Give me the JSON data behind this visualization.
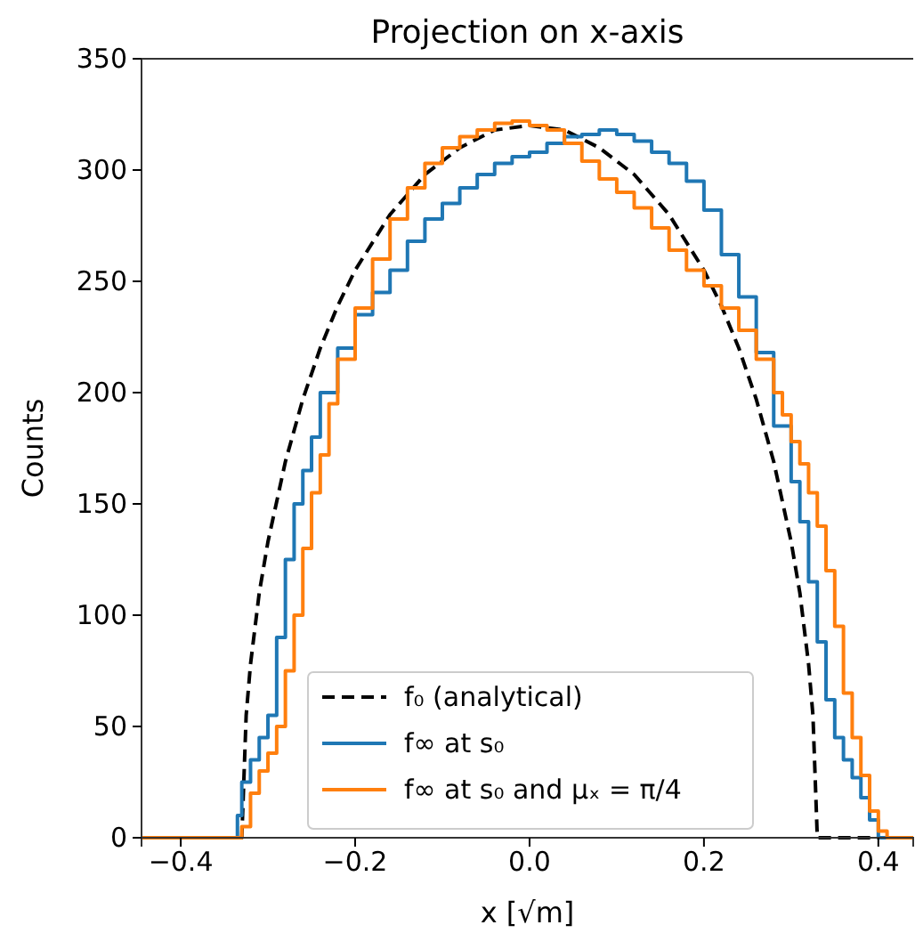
{
  "chart_data": {
    "type": "step",
    "title": "Projection on x-axis",
    "xlabel": "x [√m]",
    "ylabel": "Counts",
    "xlim": [
      -0.445,
      0.44
    ],
    "ylim": [
      0,
      350
    ],
    "xticks": [
      {
        "value": -0.4,
        "label": "−0.4"
      },
      {
        "value": -0.2,
        "label": "−0.2"
      },
      {
        "value": 0,
        "label": "0.0"
      },
      {
        "value": 0.2,
        "label": "0.2"
      },
      {
        "value": 0.4,
        "label": "0.4"
      }
    ],
    "yticks": [
      0,
      50,
      100,
      150,
      200,
      250,
      300,
      350
    ],
    "grid": false,
    "legend": "bottom",
    "marker": "none",
    "series": [
      {
        "name": "f₀ (analytical)",
        "type": "line",
        "line_style": "dashed",
        "color": "#000000",
        "x": [
          -0.445,
          -0.33,
          -0.325,
          -0.32,
          -0.31,
          -0.3,
          -0.28,
          -0.26,
          -0.24,
          -0.22,
          -0.2,
          -0.16,
          -0.12,
          -0.08,
          -0.04,
          0,
          0.04,
          0.08,
          0.12,
          0.16,
          0.2,
          0.22,
          0.24,
          0.26,
          0.28,
          0.3,
          0.31,
          0.32,
          0.325,
          0.33,
          0.44
        ],
        "values": [
          0,
          0,
          55,
          78,
          110,
          133,
          169,
          197,
          220,
          239,
          255,
          280,
          298,
          310,
          318,
          320,
          318,
          310,
          298,
          280,
          255,
          239,
          220,
          197,
          169,
          133,
          110,
          78,
          55,
          0,
          0
        ]
      },
      {
        "name": "f∞ at s₀",
        "color": "#1f77b4",
        "x": [
          -0.445,
          -0.335,
          -0.33,
          -0.32,
          -0.31,
          -0.3,
          -0.29,
          -0.28,
          -0.27,
          -0.26,
          -0.25,
          -0.24,
          -0.22,
          -0.2,
          -0.18,
          -0.16,
          -0.14,
          -0.12,
          -0.1,
          -0.08,
          -0.06,
          -0.04,
          -0.02,
          0,
          0.02,
          0.04,
          0.06,
          0.08,
          0.1,
          0.12,
          0.14,
          0.16,
          0.18,
          0.2,
          0.22,
          0.24,
          0.26,
          0.28,
          0.3,
          0.31,
          0.32,
          0.33,
          0.34,
          0.35,
          0.36,
          0.37,
          0.38,
          0.39,
          0.4,
          0.44
        ],
        "values": [
          0,
          10,
          25,
          35,
          45,
          55,
          90,
          125,
          150,
          165,
          180,
          200,
          220,
          235,
          245,
          255,
          268,
          278,
          285,
          292,
          298,
          303,
          306,
          308,
          312,
          315,
          316,
          318,
          316,
          313,
          308,
          303,
          295,
          282,
          262,
          243,
          218,
          185,
          160,
          142,
          115,
          88,
          62,
          45,
          35,
          27,
          18,
          8,
          0,
          0
        ]
      },
      {
        "name": "f∞ at s₀ and μₓ = π/4",
        "color": "#ff7f0e",
        "x": [
          -0.445,
          -0.33,
          -0.32,
          -0.31,
          -0.3,
          -0.29,
          -0.28,
          -0.27,
          -0.26,
          -0.25,
          -0.24,
          -0.23,
          -0.22,
          -0.2,
          -0.18,
          -0.16,
          -0.14,
          -0.12,
          -0.1,
          -0.08,
          -0.06,
          -0.04,
          -0.02,
          0,
          0.02,
          0.04,
          0.06,
          0.08,
          0.1,
          0.12,
          0.14,
          0.16,
          0.18,
          0.2,
          0.22,
          0.24,
          0.26,
          0.28,
          0.29,
          0.3,
          0.31,
          0.32,
          0.33,
          0.34,
          0.35,
          0.36,
          0.37,
          0.38,
          0.39,
          0.4,
          0.41,
          0.44
        ],
        "values": [
          0,
          5,
          20,
          30,
          38,
          50,
          75,
          100,
          130,
          155,
          172,
          195,
          215,
          238,
          260,
          278,
          292,
          303,
          310,
          315,
          318,
          321,
          322,
          320,
          318,
          312,
          304,
          296,
          290,
          283,
          274,
          264,
          255,
          248,
          238,
          228,
          215,
          200,
          190,
          178,
          168,
          155,
          140,
          120,
          95,
          65,
          45,
          28,
          12,
          3,
          0,
          0
        ]
      }
    ]
  }
}
